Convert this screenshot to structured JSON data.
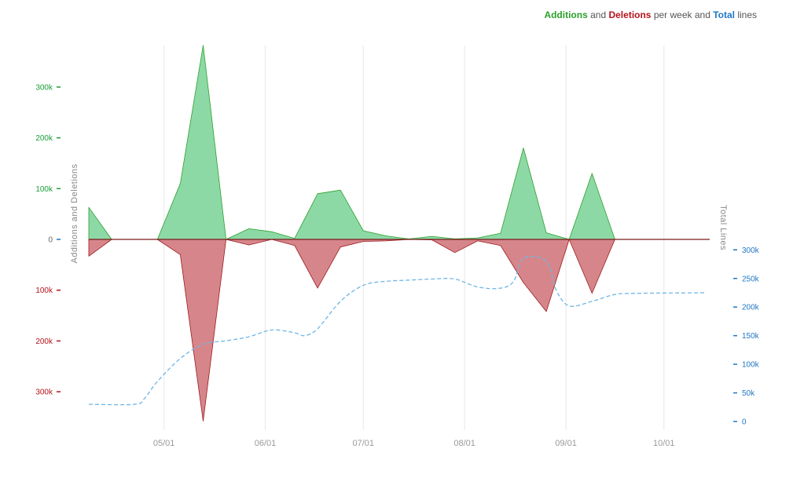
{
  "legend": {
    "additions": "Additions",
    "and": " and ",
    "deletions": "Deletions",
    "per_week_and": " per week and ",
    "total": "Total",
    "lines": " lines"
  },
  "colors": {
    "additions_fill": "#8dd9a6",
    "additions_stroke": "#2ca02c",
    "deletions_fill": "#d6868a",
    "deletions_stroke": "#9e1a1e",
    "total_line": "#6fb6e6",
    "left_pos_tick": "#1a9e3a",
    "left_neg_tick": "#b5121b",
    "right_tick": "#1f77c4",
    "grid": "#e8e8e8",
    "axis_label": "#888888"
  },
  "chart_data": {
    "type": "area",
    "title": "Additions and Deletions per week and Total lines",
    "xlabel": "",
    "ylabel": "Additions and Deletions",
    "y2label": "Total Lines",
    "x_tick_labels": [
      "05/01",
      "06/01",
      "07/01",
      "08/01",
      "09/01",
      "10/01"
    ],
    "x_tick_dates": [
      "2014-05-01",
      "2014-06-01",
      "2014-07-01",
      "2014-08-01",
      "2014-09-01",
      "2014-10-01"
    ],
    "ylim": [
      -360000,
      380000
    ],
    "y_ticks": [
      {
        "value": 300000,
        "label": "300k"
      },
      {
        "value": 200000,
        "label": "200k"
      },
      {
        "value": 100000,
        "label": "100k"
      },
      {
        "value": 0,
        "label": "0"
      },
      {
        "value": -100000,
        "label": "100k"
      },
      {
        "value": -200000,
        "label": "200k"
      },
      {
        "value": -300000,
        "label": "300k"
      }
    ],
    "y2lim": [
      0,
      325000
    ],
    "y2_ticks": [
      {
        "value": 300000,
        "label": "300k"
      },
      {
        "value": 250000,
        "label": "250k"
      },
      {
        "value": 200000,
        "label": "200k"
      },
      {
        "value": 150000,
        "label": "150k"
      },
      {
        "value": 100000,
        "label": "100k"
      },
      {
        "value": 50000,
        "label": "50k"
      },
      {
        "value": 0,
        "label": "0"
      }
    ],
    "grid": "vertical",
    "x_range": [
      "2014-04-08",
      "2014-10-15"
    ],
    "series": [
      {
        "name": "Additions",
        "points": [
          [
            "2014-04-08",
            63000
          ],
          [
            "2014-04-15",
            0
          ],
          [
            "2014-04-29",
            0
          ],
          [
            "2014-05-06",
            110000
          ],
          [
            "2014-05-13",
            382000
          ],
          [
            "2014-05-20",
            0
          ],
          [
            "2014-05-27",
            21000
          ],
          [
            "2014-06-03",
            15000
          ],
          [
            "2014-06-10",
            2000
          ],
          [
            "2014-06-17",
            90000
          ],
          [
            "2014-06-24",
            97000
          ],
          [
            "2014-07-01",
            17000
          ],
          [
            "2014-07-08",
            7000
          ],
          [
            "2014-07-15",
            1000
          ],
          [
            "2014-07-22",
            6000
          ],
          [
            "2014-07-29",
            1000
          ],
          [
            "2014-08-05",
            3000
          ],
          [
            "2014-08-12",
            12000
          ],
          [
            "2014-08-19",
            180000
          ],
          [
            "2014-08-26",
            13000
          ],
          [
            "2014-09-02",
            0
          ],
          [
            "2014-09-09",
            130000
          ],
          [
            "2014-09-16",
            0
          ],
          [
            "2014-10-14",
            0
          ]
        ]
      },
      {
        "name": "Deletions",
        "points": [
          [
            "2014-04-08",
            -33000
          ],
          [
            "2014-04-15",
            0
          ],
          [
            "2014-04-29",
            0
          ],
          [
            "2014-05-06",
            -30000
          ],
          [
            "2014-05-13",
            -358000
          ],
          [
            "2014-05-20",
            0
          ],
          [
            "2014-05-27",
            -11000
          ],
          [
            "2014-06-03",
            0
          ],
          [
            "2014-06-10",
            -12000
          ],
          [
            "2014-06-17",
            -96000
          ],
          [
            "2014-06-24",
            -15000
          ],
          [
            "2014-07-01",
            -4000
          ],
          [
            "2014-07-08",
            -3000
          ],
          [
            "2014-07-15",
            0
          ],
          [
            "2014-07-22",
            -1000
          ],
          [
            "2014-07-29",
            -26000
          ],
          [
            "2014-08-05",
            -3000
          ],
          [
            "2014-08-12",
            -12000
          ],
          [
            "2014-08-19",
            -85000
          ],
          [
            "2014-08-26",
            -142000
          ],
          [
            "2014-09-02",
            0
          ],
          [
            "2014-09-09",
            -106000
          ],
          [
            "2014-09-16",
            0
          ],
          [
            "2014-10-14",
            0
          ]
        ]
      },
      {
        "name": "Total",
        "points": [
          [
            "2014-04-08",
            30000
          ],
          [
            "2014-04-22",
            30000
          ],
          [
            "2014-04-25",
            40000
          ],
          [
            "2014-04-29",
            70000
          ],
          [
            "2014-05-06",
            110000
          ],
          [
            "2014-05-13",
            135000
          ],
          [
            "2014-05-20",
            141000
          ],
          [
            "2014-05-27",
            148000
          ],
          [
            "2014-06-03",
            160000
          ],
          [
            "2014-06-10",
            155000
          ],
          [
            "2014-06-13",
            150000
          ],
          [
            "2014-06-17",
            162000
          ],
          [
            "2014-06-24",
            210000
          ],
          [
            "2014-07-01",
            238000
          ],
          [
            "2014-07-08",
            245000
          ],
          [
            "2014-07-15",
            247000
          ],
          [
            "2014-07-22",
            249000
          ],
          [
            "2014-07-29",
            249000
          ],
          [
            "2014-08-05",
            235000
          ],
          [
            "2014-08-12",
            233000
          ],
          [
            "2014-08-16",
            245000
          ],
          [
            "2014-08-19",
            285000
          ],
          [
            "2014-08-26",
            280000
          ],
          [
            "2014-08-29",
            230000
          ],
          [
            "2014-09-02",
            202000
          ],
          [
            "2014-09-09",
            210000
          ],
          [
            "2014-09-16",
            222000
          ],
          [
            "2014-09-23",
            224000
          ],
          [
            "2014-10-14",
            225000
          ]
        ]
      }
    ]
  }
}
